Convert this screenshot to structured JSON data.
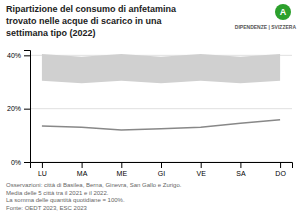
{
  "chart_data": {
    "type": "line",
    "title": [
      "Ripartizione del consumo di anfetamina",
      "trovato nelle acque di scarico in una",
      "settimana tipo (2022)"
    ],
    "annotations": [
      "A",
      "DIPENDENZE | SVIZZERA"
    ],
    "footnote": [
      "Osservazioni: città di Basilea, Berna, Ginevra, San Gallo e Zurigo.",
      "Media delle 5 città tra il 2021 e il 2022.",
      "La somma delle quantità quotidiane = 100%.",
      "Fonte: OEDT 2023, ESC 2023"
    ],
    "categories": [
      "LU",
      "MA",
      "ME",
      "GI",
      "VE",
      "SA",
      "DO"
    ],
    "series": [
      {
        "type": "band",
        "color": "#d0d0d0",
        "upper": [
          0.405,
          0.395,
          0.405,
          0.395,
          0.405,
          0.395,
          0.405
        ],
        "lower": [
          0.305,
          0.295,
          0.305,
          0.295,
          0.305,
          0.295,
          0.305
        ]
      },
      {
        "type": "line",
        "color": "#888888",
        "values": [
          0.135,
          0.13,
          0.12,
          0.125,
          0.13,
          0.145,
          0.158
        ]
      }
    ],
    "ylim": [
      0,
      0.42
    ],
    "yticks": [
      {
        "value": 0,
        "label": "0%"
      },
      {
        "value": 0.2,
        "label": "20%"
      },
      {
        "value": 0.4,
        "label": "40%"
      }
    ],
    "grid": true
  }
}
